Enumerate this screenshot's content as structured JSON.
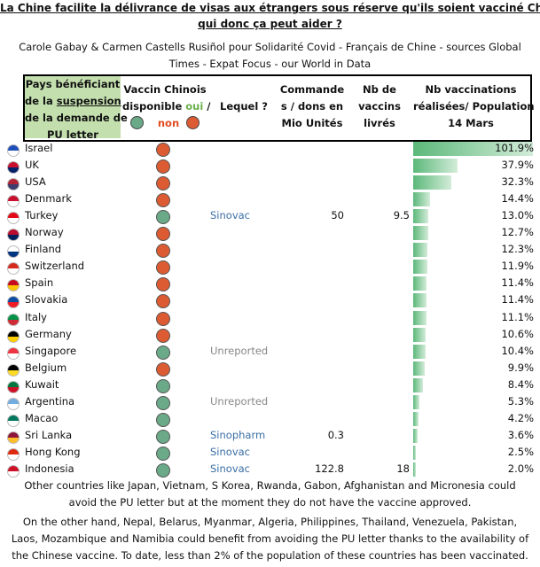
{
  "header": {
    "title_line1": "La Chine facilite la délivrance de visas aux étrangers sous réserve qu'ils soient vacciné Chinois -",
    "title_line2": "qui donc ça peut aider ?",
    "subtitle_line1": "Carole Gabay & Carmen Castells Rusiñol pour Solidarité Covid - Français de Chine - sources Global",
    "subtitle_line2": "Times - Expat Focus - our World in Data"
  },
  "table": {
    "columns": {
      "country": {
        "part1": "Pays bénéficiant",
        "part2": "de  la ",
        "underlined": "suspension",
        "part3": "de la demande de",
        "part4": "PU letter"
      },
      "available": {
        "line1": "Vaccin Chinois",
        "line2": "disponible ",
        "oui": "oui",
        "sep": " /",
        "non": "non"
      },
      "which": "Lequel ?",
      "ordered": {
        "line1": "Commande",
        "line2": "s / dons en",
        "line3": "Mio Unités"
      },
      "delivered": {
        "line1": "Nb de",
        "line2": "vaccins",
        "line3": "livrés"
      },
      "rate": {
        "line1": "Nb vaccinations",
        "line2": "réalisées/ Population",
        "line3": "14 Mars"
      }
    },
    "rows": [
      {
        "country": "Israel",
        "available": false,
        "pct": 101.9,
        "pct_label": "101.9%"
      },
      {
        "country": "UK",
        "available": false,
        "pct": 37.9,
        "pct_label": "37.9%"
      },
      {
        "country": "USA",
        "available": false,
        "pct": 32.3,
        "pct_label": "32.3%"
      },
      {
        "country": "Denmark",
        "available": false,
        "pct": 14.4,
        "pct_label": "14.4%"
      },
      {
        "country": "Turkey",
        "available": true,
        "which": "Sinovac",
        "ordered": 50,
        "delivered": 9.5,
        "pct": 13.0,
        "pct_label": "13.0%"
      },
      {
        "country": "Norway",
        "available": false,
        "pct": 12.7,
        "pct_label": "12.7%"
      },
      {
        "country": "Finland",
        "available": false,
        "pct": 12.3,
        "pct_label": "12.3%"
      },
      {
        "country": "Switzerland",
        "available": false,
        "pct": 11.9,
        "pct_label": "11.9%"
      },
      {
        "country": "Spain",
        "available": false,
        "pct": 11.4,
        "pct_label": "11.4%"
      },
      {
        "country": "Slovakia",
        "available": false,
        "pct": 11.4,
        "pct_label": "11.4%"
      },
      {
        "country": "Italy",
        "available": false,
        "pct": 11.1,
        "pct_label": "11.1%"
      },
      {
        "country": "Germany",
        "available": false,
        "pct": 10.6,
        "pct_label": "10.6%"
      },
      {
        "country": "Singapore",
        "available": true,
        "which": "Unreported",
        "pct": 10.4,
        "pct_label": "10.4%"
      },
      {
        "country": "Belgium",
        "available": false,
        "pct": 9.9,
        "pct_label": "9.9%"
      },
      {
        "country": "Kuwait",
        "available": true,
        "pct": 8.4,
        "pct_label": "8.4%"
      },
      {
        "country": "Argentina",
        "available": true,
        "which": "Unreported",
        "pct": 5.3,
        "pct_label": "5.3%"
      },
      {
        "country": "Macao",
        "available": true,
        "pct": 4.2,
        "pct_label": "4.2%"
      },
      {
        "country": "Sri Lanka",
        "available": true,
        "which": "Sinopharm",
        "ordered": 0.3,
        "pct": 3.6,
        "pct_label": "3.6%"
      },
      {
        "country": "Hong Kong",
        "available": true,
        "which": "Sinovac",
        "pct": 2.5,
        "pct_label": "2.5%"
      },
      {
        "country": "Indonesia",
        "available": true,
        "which": "Sinovac",
        "ordered": 122.8,
        "delivered": 18,
        "pct": 2.0,
        "pct_label": "2.0%"
      }
    ]
  },
  "footer": {
    "p1_line1": "Other countries like Japan, Vietnam, S Korea, Rwanda, Gabon, Afghanistan and Micronesia could",
    "p1_line2": "avoid the PU letter but at the moment they do not have the vaccine approved.",
    "p2_line1": "On the other hand, Nepal, Belarus, Myanmar, Algeria, Philippines, Thailand, Venezuela, Pakistan,",
    "p2_line2": "Laos, Mozambique and Namibia could benefit from avoiding the PU letter thanks to the availability of",
    "p2_line3": "the Chinese vaccine. To date, less than 2% of the population of these countries has been vaccinated."
  }
}
